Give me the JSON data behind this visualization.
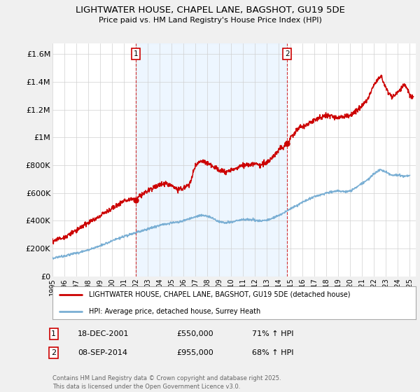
{
  "title": "LIGHTWATER HOUSE, CHAPEL LANE, BAGSHOT, GU19 5DE",
  "subtitle": "Price paid vs. HM Land Registry's House Price Index (HPI)",
  "ylabel_ticks": [
    "£0",
    "£200K",
    "£400K",
    "£600K",
    "£800K",
    "£1M",
    "£1.2M",
    "£1.4M",
    "£1.6M"
  ],
  "ytick_values": [
    0,
    200000,
    400000,
    600000,
    800000,
    1000000,
    1200000,
    1400000,
    1600000
  ],
  "ylim": [
    0,
    1680000
  ],
  "xlim_start": 1995.0,
  "xlim_end": 2025.5,
  "transaction1": {
    "date_num": 2002.0,
    "price": 550000,
    "label": "1",
    "date_str": "18-DEC-2001",
    "pct": "71% ↑ HPI"
  },
  "transaction2": {
    "date_num": 2014.7,
    "price": 955000,
    "label": "2",
    "date_str": "08-SEP-2014",
    "pct": "68% ↑ HPI"
  },
  "legend_house": "LIGHTWATER HOUSE, CHAPEL LANE, BAGSHOT, GU19 5DE (detached house)",
  "legend_hpi": "HPI: Average price, detached house, Surrey Heath",
  "footnote": "Contains HM Land Registry data © Crown copyright and database right 2025.\nThis data is licensed under the Open Government Licence v3.0.",
  "house_color": "#cc0000",
  "hpi_color": "#7aafd4",
  "background_color": "#f0f0f0",
  "plot_bg_color": "#ffffff",
  "grid_color": "#d0d0d0",
  "vline_color": "#cc0000",
  "hpi_x": [
    1995.0,
    1995.5,
    1996.0,
    1996.5,
    1997.0,
    1997.5,
    1998.0,
    1998.5,
    1999.0,
    1999.5,
    2000.0,
    2000.5,
    2001.0,
    2001.5,
    2002.0,
    2002.5,
    2003.0,
    2003.5,
    2004.0,
    2004.5,
    2005.0,
    2005.5,
    2006.0,
    2006.5,
    2007.0,
    2007.5,
    2008.0,
    2008.5,
    2009.0,
    2009.5,
    2010.0,
    2010.5,
    2011.0,
    2011.5,
    2012.0,
    2012.5,
    2013.0,
    2013.5,
    2014.0,
    2014.5,
    2015.0,
    2015.5,
    2016.0,
    2016.5,
    2017.0,
    2017.5,
    2018.0,
    2018.5,
    2019.0,
    2019.5,
    2020.0,
    2020.5,
    2021.0,
    2021.5,
    2022.0,
    2022.5,
    2023.0,
    2023.5,
    2024.0,
    2024.5,
    2025.0
  ],
  "hpi_y": [
    130000,
    140000,
    148000,
    158000,
    168000,
    178000,
    190000,
    205000,
    220000,
    238000,
    255000,
    272000,
    285000,
    300000,
    315000,
    328000,
    342000,
    356000,
    368000,
    378000,
    385000,
    390000,
    400000,
    415000,
    430000,
    440000,
    435000,
    415000,
    395000,
    385000,
    390000,
    400000,
    410000,
    408000,
    405000,
    400000,
    405000,
    420000,
    440000,
    460000,
    490000,
    510000,
    535000,
    555000,
    575000,
    585000,
    600000,
    610000,
    615000,
    610000,
    615000,
    640000,
    670000,
    700000,
    740000,
    770000,
    750000,
    730000,
    730000,
    720000,
    730000
  ],
  "house_x": [
    1995.0,
    1995.3,
    1995.6,
    1996.0,
    1996.3,
    1996.6,
    1997.0,
    1997.3,
    1997.6,
    1998.0,
    1998.3,
    1998.6,
    1999.0,
    1999.5,
    2000.0,
    2000.5,
    2001.0,
    2001.5,
    2002.0,
    2002.5,
    2003.0,
    2003.5,
    2004.0,
    2004.5,
    2005.0,
    2005.5,
    2006.0,
    2006.5,
    2007.0,
    2007.3,
    2007.6,
    2008.0,
    2008.5,
    2009.0,
    2009.5,
    2010.0,
    2010.5,
    2011.0,
    2011.5,
    2012.0,
    2012.5,
    2013.0,
    2013.5,
    2014.0,
    2014.5,
    2014.7,
    2015.0,
    2015.5,
    2016.0,
    2016.5,
    2017.0,
    2017.5,
    2018.0,
    2018.5,
    2019.0,
    2019.5,
    2020.0,
    2020.5,
    2021.0,
    2021.5,
    2022.0,
    2022.3,
    2022.6,
    2023.0,
    2023.5,
    2024.0,
    2024.3,
    2024.6,
    2025.0,
    2025.3
  ],
  "house_y": [
    255000,
    265000,
    270000,
    280000,
    295000,
    310000,
    330000,
    350000,
    365000,
    385000,
    400000,
    415000,
    435000,
    465000,
    490000,
    520000,
    545000,
    550000,
    555000,
    590000,
    620000,
    640000,
    660000,
    670000,
    650000,
    630000,
    640000,
    660000,
    800000,
    820000,
    830000,
    820000,
    790000,
    760000,
    750000,
    760000,
    780000,
    800000,
    805000,
    810000,
    800000,
    820000,
    860000,
    910000,
    945000,
    955000,
    1000000,
    1050000,
    1080000,
    1100000,
    1130000,
    1150000,
    1160000,
    1150000,
    1140000,
    1150000,
    1160000,
    1190000,
    1230000,
    1280000,
    1380000,
    1420000,
    1440000,
    1350000,
    1290000,
    1330000,
    1360000,
    1380000,
    1310000,
    1290000
  ]
}
